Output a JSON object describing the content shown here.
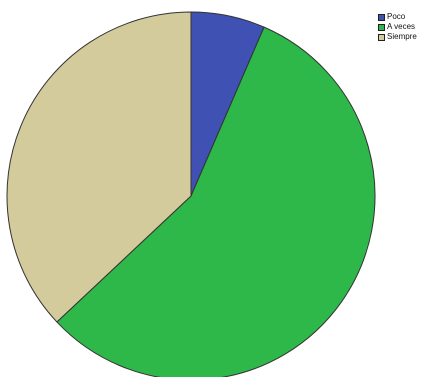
{
  "chart_data": {
    "type": "pie",
    "title": "",
    "slices": [
      {
        "label": "Poco",
        "value": 6.5,
        "color": "#3f51b2"
      },
      {
        "label": "A veces",
        "value": 56.5,
        "color": "#2fb84a"
      },
      {
        "label": "Siempre",
        "value": 37.0,
        "color": "#d3cb9b"
      }
    ],
    "start_angle": "top",
    "direction": "clockwise",
    "legend_position": "top-right",
    "outline_color": "#333333"
  }
}
